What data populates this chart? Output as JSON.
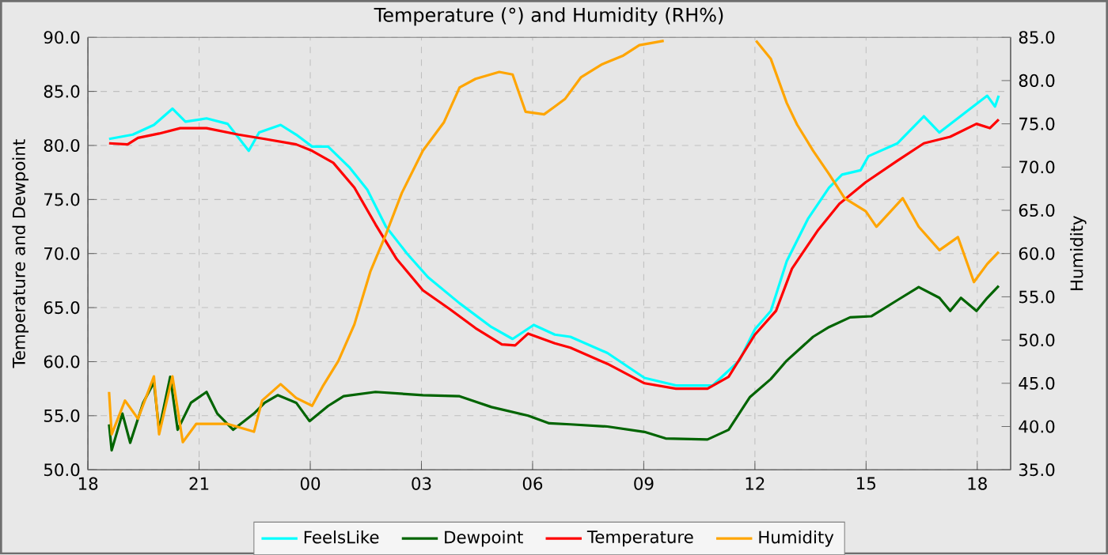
{
  "chart_data": {
    "type": "line",
    "title": "Temperature (°) and Humidity (RH%)",
    "ylabel": "Temperature and Dewpoint",
    "y2label": "Humidity",
    "xlim": [
      18,
      42.9
    ],
    "xticks": [
      {
        "value": 18,
        "label": "18"
      },
      {
        "value": 21,
        "label": "21"
      },
      {
        "value": 24,
        "label": "00"
      },
      {
        "value": 27,
        "label": "03"
      },
      {
        "value": 30,
        "label": "06"
      },
      {
        "value": 33,
        "label": "09"
      },
      {
        "value": 36,
        "label": "12"
      },
      {
        "value": 39,
        "label": "15"
      },
      {
        "value": 42,
        "label": "18"
      }
    ],
    "ylim": [
      50,
      90
    ],
    "yticks": [
      {
        "value": 50,
        "label": "50.0"
      },
      {
        "value": 55,
        "label": "55.0"
      },
      {
        "value": 60,
        "label": "60.0"
      },
      {
        "value": 65,
        "label": "65.0"
      },
      {
        "value": 70,
        "label": "70.0"
      },
      {
        "value": 75,
        "label": "75.0"
      },
      {
        "value": 80,
        "label": "80.0"
      },
      {
        "value": 85,
        "label": "85.0"
      },
      {
        "value": 90,
        "label": "90.0"
      }
    ],
    "y2lim": [
      35,
      85
    ],
    "y2ticks": [
      {
        "value": 35,
        "label": "35.0"
      },
      {
        "value": 40,
        "label": "40.0"
      },
      {
        "value": 45,
        "label": "45.0"
      },
      {
        "value": 50,
        "label": "50.0"
      },
      {
        "value": 55,
        "label": "55.0"
      },
      {
        "value": 60,
        "label": "60.0"
      },
      {
        "value": 65,
        "label": "65.0"
      },
      {
        "value": 70,
        "label": "70.0"
      },
      {
        "value": 75,
        "label": "75.0"
      },
      {
        "value": 80,
        "label": "80.0"
      },
      {
        "value": 85,
        "label": "85.0"
      }
    ],
    "grid": true,
    "legend": "bottom",
    "series": [
      {
        "name": "FeelsLike",
        "color": "#00ffff",
        "x": [
          18.57,
          19.21,
          19.78,
          20.28,
          20.63,
          21.2,
          21.77,
          22.34,
          22.62,
          23.2,
          23.62,
          24.05,
          24.48,
          25.05,
          25.54,
          26.04,
          26.61,
          27.18,
          28.03,
          28.89,
          29.46,
          30.03,
          30.6,
          31.02,
          32.02,
          33.02,
          33.87,
          34.86,
          35.58,
          36.0,
          36.43,
          36.86,
          37.43,
          38.0,
          38.35,
          38.85,
          39.06,
          39.85,
          40.56,
          40.98,
          41.7,
          42.27,
          42.48,
          42.58
        ],
        "values": [
          80.6,
          81.0,
          81.9,
          83.4,
          82.2,
          82.5,
          82.0,
          79.5,
          81.2,
          81.9,
          81.0,
          79.9,
          79.9,
          78.0,
          75.9,
          72.5,
          70.0,
          67.8,
          65.4,
          63.2,
          62.1,
          63.4,
          62.5,
          62.3,
          60.8,
          58.5,
          57.8,
          57.8,
          60.1,
          63.0,
          64.7,
          69.3,
          73.2,
          76.1,
          77.3,
          77.7,
          79.0,
          80.2,
          82.7,
          81.2,
          83.1,
          84.6,
          83.6,
          84.6
        ]
      },
      {
        "name": "Dewpoint",
        "color": "#006400",
        "x": [
          18.57,
          18.64,
          18.93,
          19.14,
          19.49,
          19.78,
          19.92,
          20.22,
          20.42,
          20.78,
          21.2,
          21.49,
          21.92,
          22.48,
          22.77,
          23.12,
          23.62,
          23.98,
          24.48,
          24.9,
          25.76,
          27.04,
          28.03,
          28.89,
          29.88,
          30.45,
          31.02,
          32.02,
          33.02,
          33.59,
          34.72,
          35.29,
          35.86,
          36.43,
          36.86,
          37.57,
          38.0,
          38.57,
          39.14,
          39.85,
          40.42,
          40.98,
          41.27,
          41.56,
          41.98,
          42.27,
          42.58
        ],
        "values": [
          54.2,
          51.8,
          55.2,
          52.5,
          56.2,
          58.1,
          53.7,
          58.6,
          53.7,
          56.2,
          57.2,
          55.2,
          53.7,
          55.2,
          56.2,
          56.9,
          56.2,
          54.5,
          55.9,
          56.8,
          57.2,
          56.9,
          56.8,
          55.8,
          55.0,
          54.3,
          54.2,
          54.0,
          53.5,
          52.9,
          52.8,
          53.7,
          56.7,
          58.4,
          60.1,
          62.3,
          63.2,
          64.1,
          64.2,
          65.7,
          66.9,
          65.9,
          64.7,
          65.9,
          64.7,
          65.9,
          67.0
        ]
      },
      {
        "name": "Temperature",
        "color": "#ff0000",
        "x": [
          18.57,
          19.07,
          19.35,
          19.92,
          20.49,
          21.2,
          22.06,
          22.77,
          23.62,
          24.05,
          24.62,
          25.19,
          25.76,
          26.33,
          27.04,
          27.75,
          28.46,
          29.17,
          29.53,
          29.88,
          30.6,
          31.02,
          32.02,
          33.02,
          33.87,
          34.72,
          35.29,
          36.0,
          36.57,
          37.0,
          37.71,
          38.28,
          38.99,
          39.85,
          40.56,
          41.27,
          41.98,
          42.34,
          42.58
        ],
        "values": [
          80.2,
          80.1,
          80.7,
          81.1,
          81.6,
          81.6,
          81.0,
          80.6,
          80.1,
          79.5,
          78.4,
          76.1,
          72.7,
          69.5,
          66.6,
          64.9,
          63.1,
          61.6,
          61.5,
          62.6,
          61.7,
          61.3,
          59.8,
          58.0,
          57.5,
          57.5,
          58.6,
          62.5,
          64.7,
          68.6,
          72.2,
          74.6,
          76.6,
          78.6,
          80.2,
          80.8,
          82.0,
          81.6,
          82.4
        ]
      },
      {
        "name": "Humidity",
        "color": "#ffa500",
        "axis": "y2",
        "x": [
          18.57,
          18.64,
          19.0,
          19.35,
          19.78,
          19.92,
          20.28,
          20.56,
          20.92,
          21.77,
          22.48,
          22.7,
          23.2,
          23.62,
          24.05,
          24.33,
          24.76,
          25.19,
          25.62,
          26.04,
          26.47,
          27.04,
          27.61,
          28.03,
          28.46,
          29.1,
          29.46,
          29.81,
          30.31,
          30.6,
          30.88,
          31.31,
          31.88,
          32.45,
          32.88,
          33.54,
          34.8,
          36.03,
          36.43,
          36.86,
          37.14,
          37.57,
          38.0,
          38.42,
          38.99,
          39.28,
          39.99,
          40.42,
          40.98,
          41.48,
          41.91,
          42.27,
          42.58
        ],
        "values": [
          44.0,
          39.1,
          43.0,
          40.9,
          45.8,
          39.1,
          45.8,
          38.2,
          40.3,
          40.3,
          39.4,
          43.0,
          44.9,
          43.3,
          42.4,
          44.6,
          47.6,
          51.8,
          57.9,
          62.2,
          67.0,
          71.9,
          75.2,
          79.2,
          80.2,
          81.0,
          80.7,
          76.4,
          76.1,
          77.0,
          77.9,
          80.4,
          81.9,
          82.9,
          84.1,
          84.6,
          null,
          84.6,
          82.5,
          77.4,
          74.9,
          71.9,
          69.2,
          66.4,
          64.9,
          63.1,
          66.4,
          63.1,
          60.4,
          61.9,
          56.7,
          58.8,
          60.2
        ]
      }
    ]
  }
}
